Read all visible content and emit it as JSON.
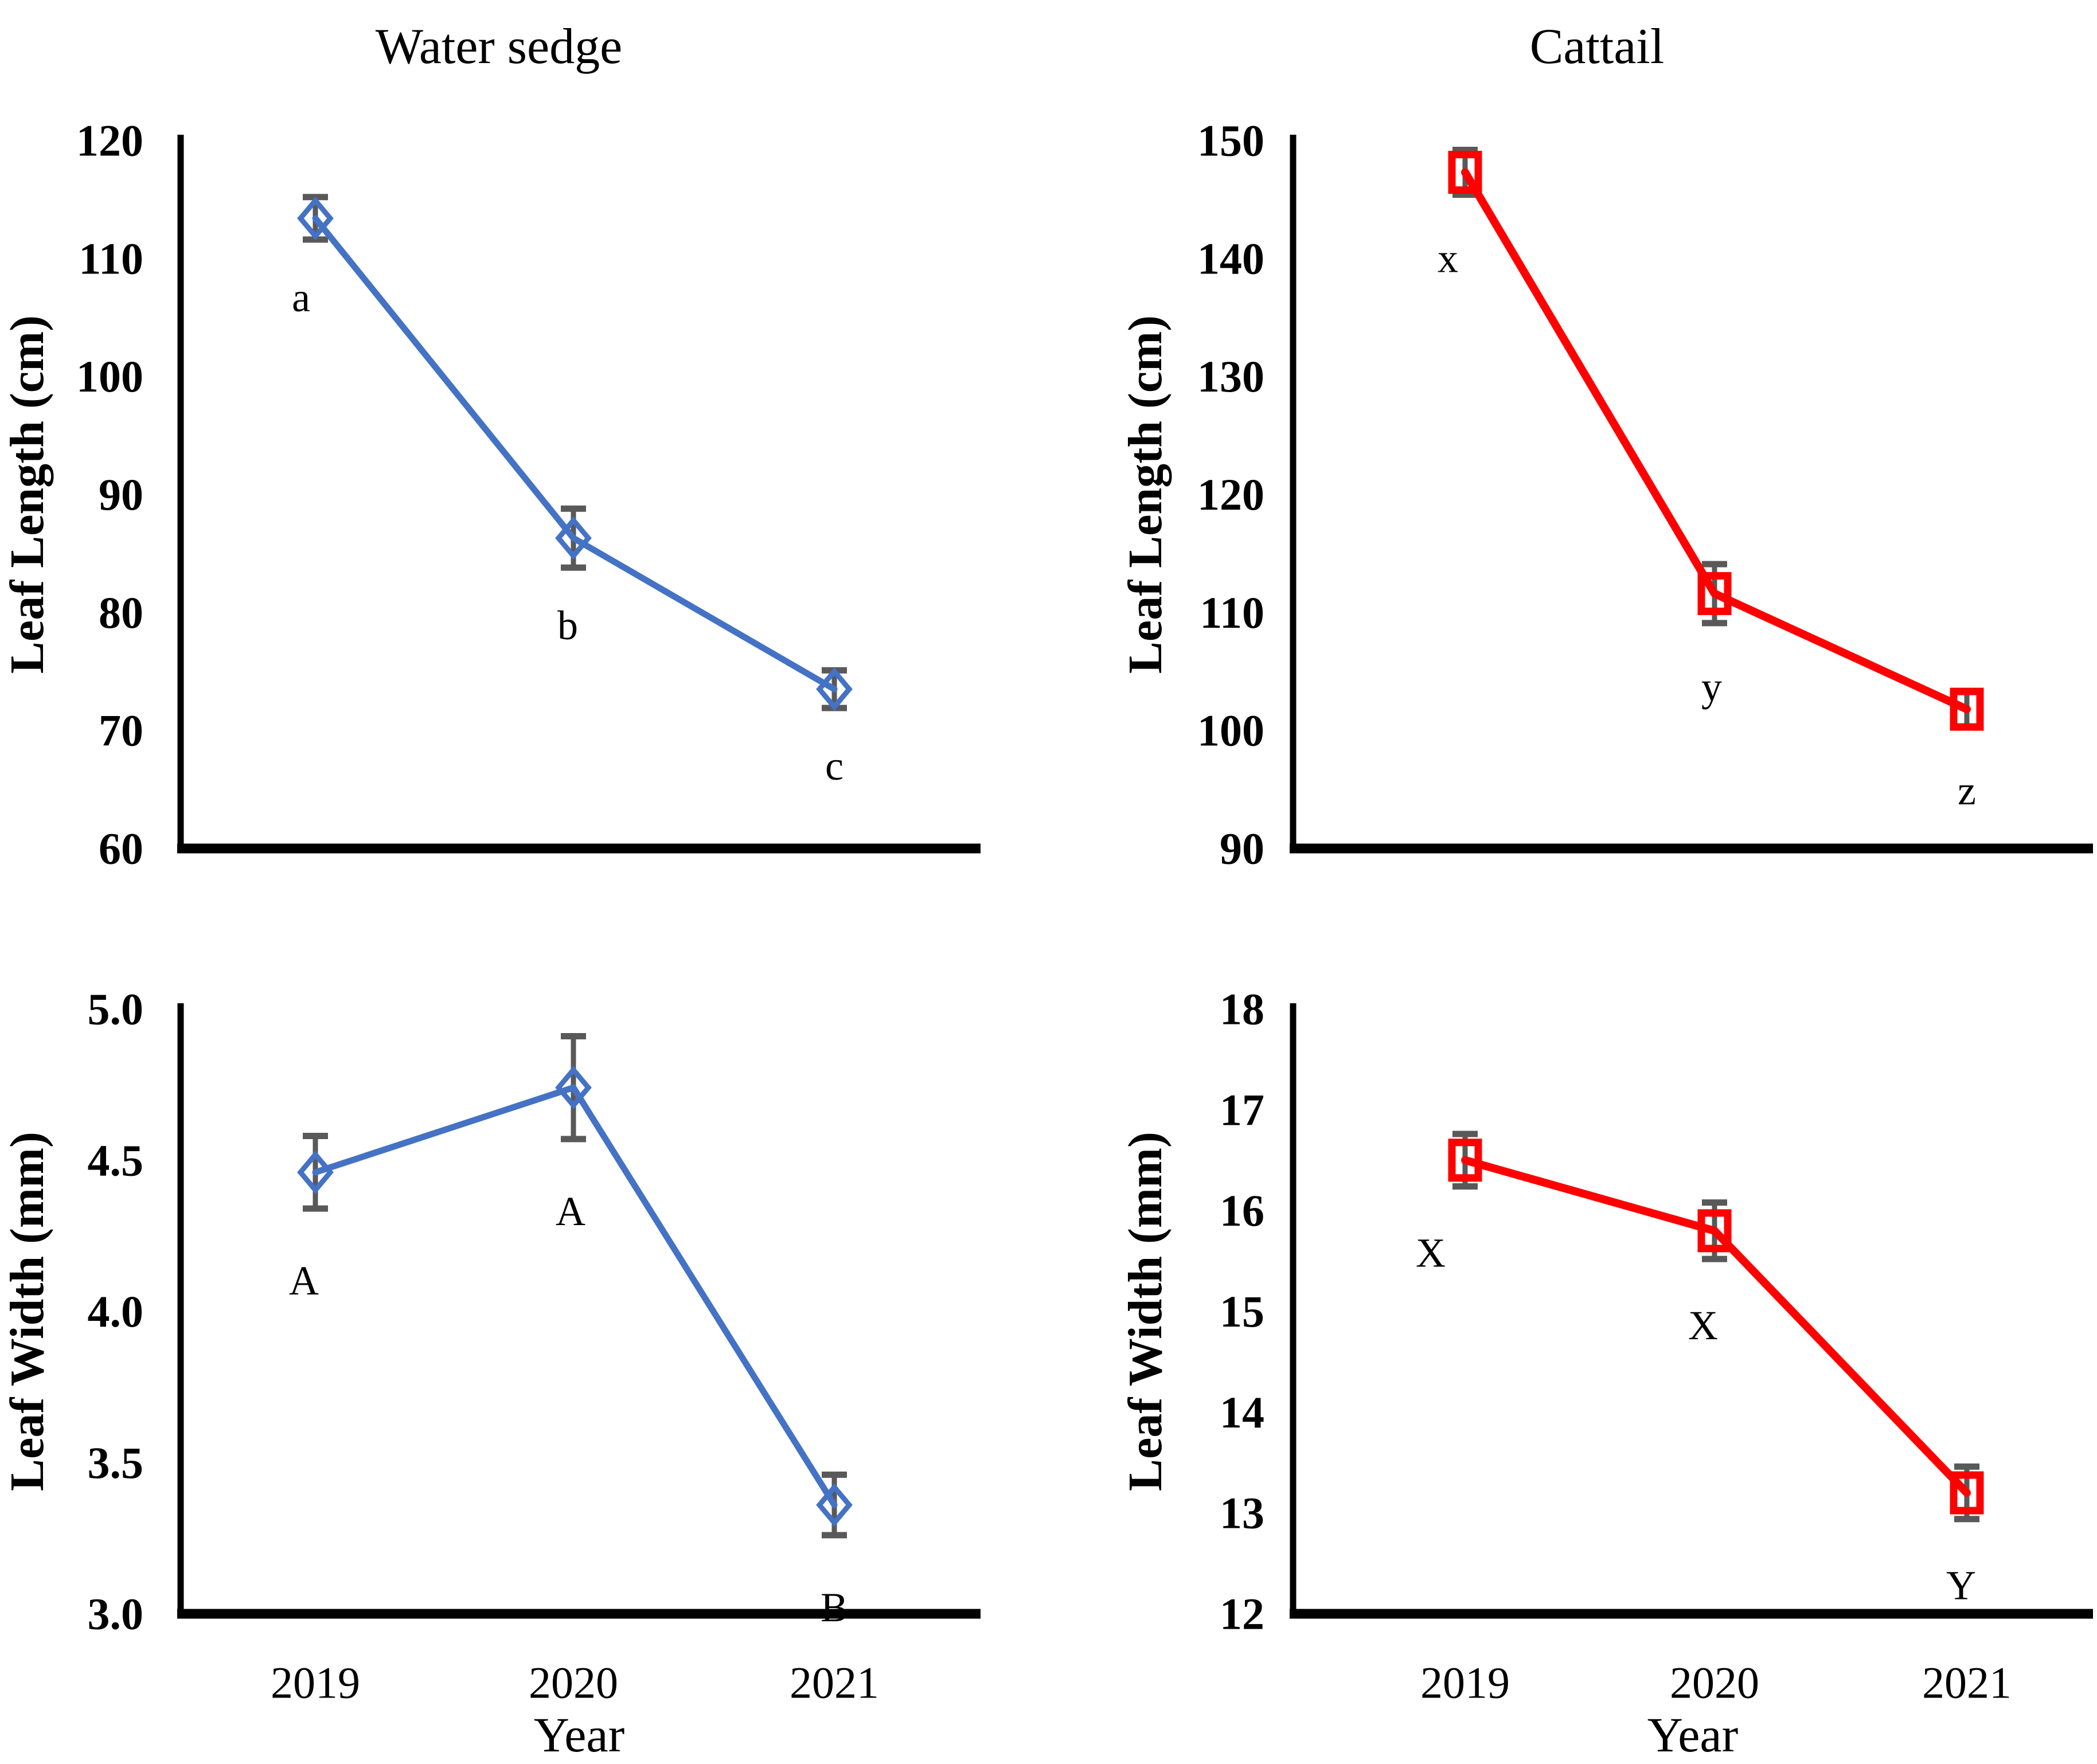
{
  "figure": {
    "background": "#FFFFFF",
    "column_titles": [
      "Water sedge",
      "Cattail"
    ],
    "x_axis_label": "Year",
    "x_categories": [
      "2019",
      "2020",
      "2021"
    ]
  },
  "colors": {
    "water_sedge_series": "#4472C4",
    "cattail_series": "#FF0000",
    "error_bar": "#595959",
    "axis": "#000000",
    "text": "#000000"
  },
  "chart_data": [
    {
      "id": "water-sedge-leaf-length",
      "type": "line",
      "series": "Water sedge leaf length",
      "title": "Water sedge",
      "ylabel": "Leaf Length (cm)",
      "ylim": [
        60,
        120
      ],
      "y_ticks": [
        "120",
        "110",
        "100",
        "90",
        "80",
        "70",
        "60"
      ],
      "x_categories": [
        "2019",
        "2020",
        "2021"
      ],
      "x_tick_labels_shown": false,
      "x_axis_label": "Year",
      "xlabel_shown": false,
      "grid": false,
      "legend": "none",
      "line_color": "#4472C4",
      "marker": "open-diamond",
      "marker_color": "#4472C4",
      "error_bar_color": "#595959",
      "points": [
        {
          "x": "2019",
          "y": 113.4,
          "error": 1.8,
          "label": "a"
        },
        {
          "x": "2020",
          "y": 86.3,
          "error": 2.5,
          "label": "b"
        },
        {
          "x": "2021",
          "y": 73.5,
          "error": 1.6,
          "label": "c"
        }
      ]
    },
    {
      "id": "cattail-leaf-length",
      "type": "line",
      "series": "Cattail leaf length",
      "title": "Cattail",
      "ylabel": "Leaf Length (cm)",
      "ylim": [
        90,
        150
      ],
      "y_ticks": [
        "150",
        "140",
        "130",
        "120",
        "110",
        "100",
        "90"
      ],
      "x_categories": [
        "2019",
        "2020",
        "2021"
      ],
      "x_tick_labels_shown": false,
      "x_axis_label": "Year",
      "xlabel_shown": false,
      "grid": false,
      "legend": "none",
      "line_color": "#FF0000",
      "marker": "open-square",
      "marker_color": "#FF0000",
      "error_bar_color": "#595959",
      "points": [
        {
          "x": "2019",
          "y": 147.3,
          "error": 1.9,
          "label": "x"
        },
        {
          "x": "2020",
          "y": 111.6,
          "error": 2.5,
          "label": "y"
        },
        {
          "x": "2021",
          "y": 101.8,
          "error": 1.5,
          "label": "z"
        }
      ]
    },
    {
      "id": "water-sedge-leaf-width",
      "type": "line",
      "series": "Water sedge leaf width",
      "title": "",
      "ylabel": "Leaf Width (mm)",
      "ylim": [
        3.0,
        5.0
      ],
      "y_ticks": [
        "5.0",
        "4.5",
        "4.0",
        "3.5",
        "3.0"
      ],
      "x_categories": [
        "2019",
        "2020",
        "2021"
      ],
      "x_tick_labels_shown": true,
      "x_axis_label": "Year",
      "xlabel_shown": true,
      "grid": false,
      "legend": "none",
      "line_color": "#4472C4",
      "marker": "open-diamond",
      "marker_color": "#4472C4",
      "error_bar_color": "#595959",
      "points": [
        {
          "x": "2019",
          "y": 4.46,
          "error": 0.12,
          "label": "A"
        },
        {
          "x": "2020",
          "y": 4.74,
          "error": 0.17,
          "label": "A"
        },
        {
          "x": "2021",
          "y": 3.36,
          "error": 0.1,
          "label": "B"
        }
      ]
    },
    {
      "id": "cattail-leaf-width",
      "type": "line",
      "series": "Cattail leaf width",
      "title": "",
      "ylabel": "Leaf Width (mm)",
      "ylim": [
        12,
        18
      ],
      "y_ticks": [
        "18",
        "17",
        "16",
        "15",
        "14",
        "13",
        "12"
      ],
      "x_categories": [
        "2019",
        "2020",
        "2021"
      ],
      "x_tick_labels_shown": true,
      "x_axis_label": "Year",
      "xlabel_shown": true,
      "grid": false,
      "legend": "none",
      "line_color": "#FF0000",
      "marker": "open-square",
      "marker_color": "#FF0000",
      "error_bar_color": "#595959",
      "points": [
        {
          "x": "2019",
          "y": 16.5,
          "error": 0.26,
          "label": "X"
        },
        {
          "x": "2020",
          "y": 15.8,
          "error": 0.28,
          "label": "X"
        },
        {
          "x": "2021",
          "y": 13.2,
          "error": 0.26,
          "label": "Y"
        }
      ]
    }
  ]
}
